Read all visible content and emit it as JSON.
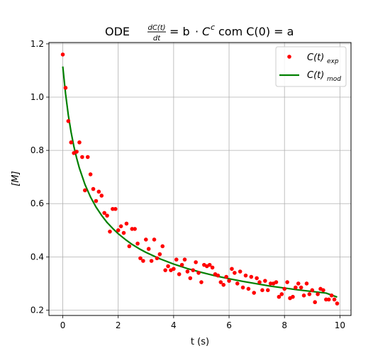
{
  "chart_data": {
    "type": "scatter",
    "title_prefix": "ODE",
    "title_eq_lhs_num": "dC(t)",
    "title_eq_lhs_den": "dt",
    "title_eq_rhs_eq": "= b",
    "title_eq_rhs_c": "C",
    "title_eq_rhs_exp": "c",
    "title_eq_rhs_com": "com C(0) = a",
    "xlabel": "t (s)",
    "ylabel": "[M]",
    "xlim": [
      -0.5,
      10.4
    ],
    "ylim": [
      0.18,
      1.205
    ],
    "xticks": [
      0,
      2,
      4,
      6,
      8,
      10
    ],
    "yticks": [
      0.2,
      0.4,
      0.6,
      0.8,
      1.0,
      1.2
    ],
    "xtick_labels": [
      "0",
      "2",
      "4",
      "6",
      "8",
      "10"
    ],
    "ytick_labels": [
      "0.2",
      "0.4",
      "0.6",
      "0.8",
      "1.0",
      "1.2"
    ],
    "grid": true,
    "legend_placement": "top-right",
    "series": [
      {
        "name": "C(t)exp",
        "legend_main": "C(t)",
        "legend_sub": "exp",
        "style": "markers",
        "color": "#ff0000",
        "x": [
          0.0,
          0.1,
          0.2,
          0.3,
          0.4,
          0.5,
          0.6,
          0.7,
          0.8,
          0.9,
          1.0,
          1.1,
          1.2,
          1.3,
          1.4,
          1.5,
          1.6,
          1.7,
          1.8,
          1.9,
          2.0,
          2.1,
          2.2,
          2.3,
          2.4,
          2.5,
          2.6,
          2.7,
          2.8,
          2.9,
          3.0,
          3.1,
          3.2,
          3.3,
          3.4,
          3.5,
          3.6,
          3.7,
          3.8,
          3.9,
          4.0,
          4.1,
          4.2,
          4.3,
          4.4,
          4.5,
          4.6,
          4.7,
          4.8,
          4.9,
          5.0,
          5.1,
          5.2,
          5.3,
          5.4,
          5.5,
          5.6,
          5.7,
          5.8,
          5.9,
          6.0,
          6.1,
          6.2,
          6.3,
          6.4,
          6.5,
          6.6,
          6.7,
          6.8,
          6.9,
          7.0,
          7.1,
          7.2,
          7.3,
          7.4,
          7.5,
          7.6,
          7.7,
          7.8,
          7.9,
          8.0,
          8.1,
          8.2,
          8.3,
          8.4,
          8.5,
          8.6,
          8.7,
          8.8,
          8.9,
          9.0,
          9.1,
          9.2,
          9.3,
          9.4,
          9.5,
          9.6,
          9.7,
          9.8,
          9.9
        ],
        "y": [
          1.16,
          1.035,
          0.91,
          0.83,
          0.79,
          0.795,
          0.83,
          0.775,
          0.65,
          0.775,
          0.71,
          0.655,
          0.61,
          0.645,
          0.63,
          0.565,
          0.555,
          0.495,
          0.58,
          0.58,
          0.5,
          0.515,
          0.49,
          0.525,
          0.44,
          0.505,
          0.505,
          0.45,
          0.395,
          0.385,
          0.465,
          0.43,
          0.385,
          0.465,
          0.395,
          0.41,
          0.44,
          0.35,
          0.365,
          0.35,
          0.355,
          0.39,
          0.335,
          0.37,
          0.39,
          0.345,
          0.32,
          0.35,
          0.38,
          0.34,
          0.305,
          0.37,
          0.365,
          0.37,
          0.36,
          0.335,
          0.33,
          0.305,
          0.295,
          0.325,
          0.31,
          0.355,
          0.34,
          0.3,
          0.345,
          0.285,
          0.33,
          0.28,
          0.325,
          0.265,
          0.32,
          0.305,
          0.275,
          0.31,
          0.275,
          0.3,
          0.3,
          0.305,
          0.25,
          0.26,
          0.28,
          0.305,
          0.245,
          0.25,
          0.285,
          0.3,
          0.285,
          0.255,
          0.3,
          0.26,
          0.275,
          0.23,
          0.26,
          0.28,
          0.275,
          0.24,
          0.24,
          0.255,
          0.24,
          0.225
        ]
      },
      {
        "name": "C(t)mod",
        "legend_main": "C(t)",
        "legend_sub": "mod",
        "style": "line",
        "color": "#008000",
        "x": [
          0.0,
          0.1,
          0.2,
          0.3,
          0.4,
          0.5,
          0.6,
          0.8,
          1.0,
          1.2,
          1.4,
          1.6,
          1.8,
          2.0,
          2.25,
          2.5,
          2.75,
          3.0,
          3.5,
          4.0,
          4.5,
          5.0,
          5.5,
          6.0,
          6.5,
          7.0,
          7.5,
          8.0,
          8.5,
          9.0,
          9.5,
          9.9
        ],
        "y": [
          1.115,
          1.013,
          0.932,
          0.868,
          0.815,
          0.771,
          0.733,
          0.672,
          0.625,
          0.587,
          0.556,
          0.529,
          0.507,
          0.487,
          0.466,
          0.447,
          0.431,
          0.417,
          0.393,
          0.373,
          0.356,
          0.342,
          0.329,
          0.318,
          0.308,
          0.299,
          0.29,
          0.283,
          0.276,
          0.27,
          0.264,
          0.249
        ]
      }
    ]
  }
}
